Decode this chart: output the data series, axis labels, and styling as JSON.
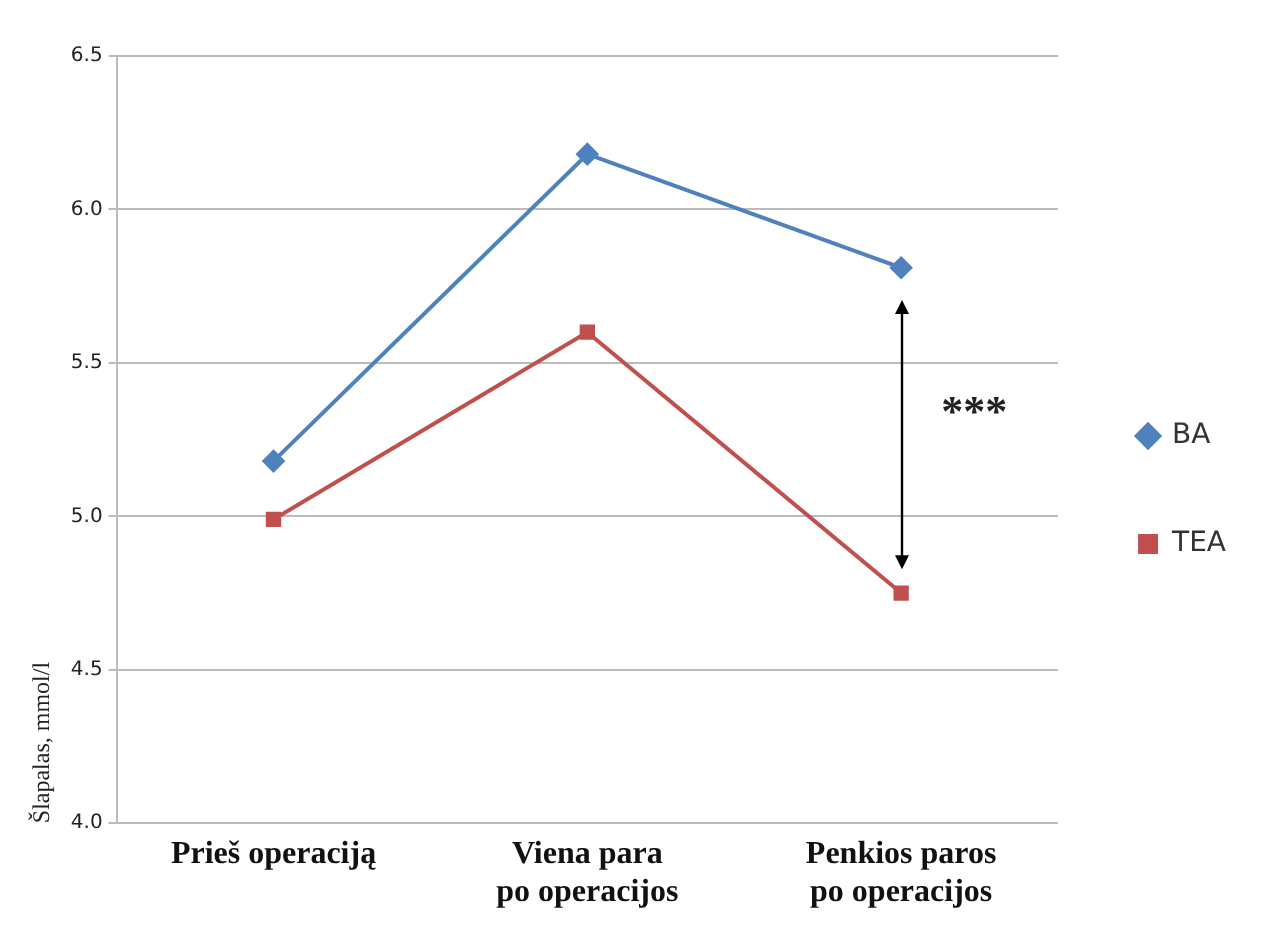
{
  "chart_data": {
    "type": "line",
    "ylabel": "Šlapalas, mmol/l",
    "categories": [
      "Prieš operaciją",
      "Viena para\npo operacijos",
      "Penkios paros\npo operacijos"
    ],
    "series": [
      {
        "name": "BA",
        "color": "#4f81bd",
        "values": [
          5.18,
          6.18,
          5.81
        ],
        "marker": "diamond"
      },
      {
        "name": "TEA",
        "color": "#c0504d",
        "values": [
          4.99,
          5.6,
          4.75
        ],
        "marker": "square"
      }
    ],
    "ylim": [
      4.0,
      6.5
    ],
    "yticks": [
      {
        "value": 4.0,
        "label": "4.0"
      },
      {
        "value": 4.5,
        "label": "4.5"
      },
      {
        "value": 5.0,
        "label": "5.0"
      },
      {
        "value": 5.5,
        "label": "5.5"
      },
      {
        "value": 6.0,
        "label": "6.0"
      },
      {
        "value": 6.5,
        "label": "6.5"
      }
    ],
    "grid": "y",
    "legend": "right",
    "line_style": "solid",
    "annotations": [
      "***"
    ]
  }
}
